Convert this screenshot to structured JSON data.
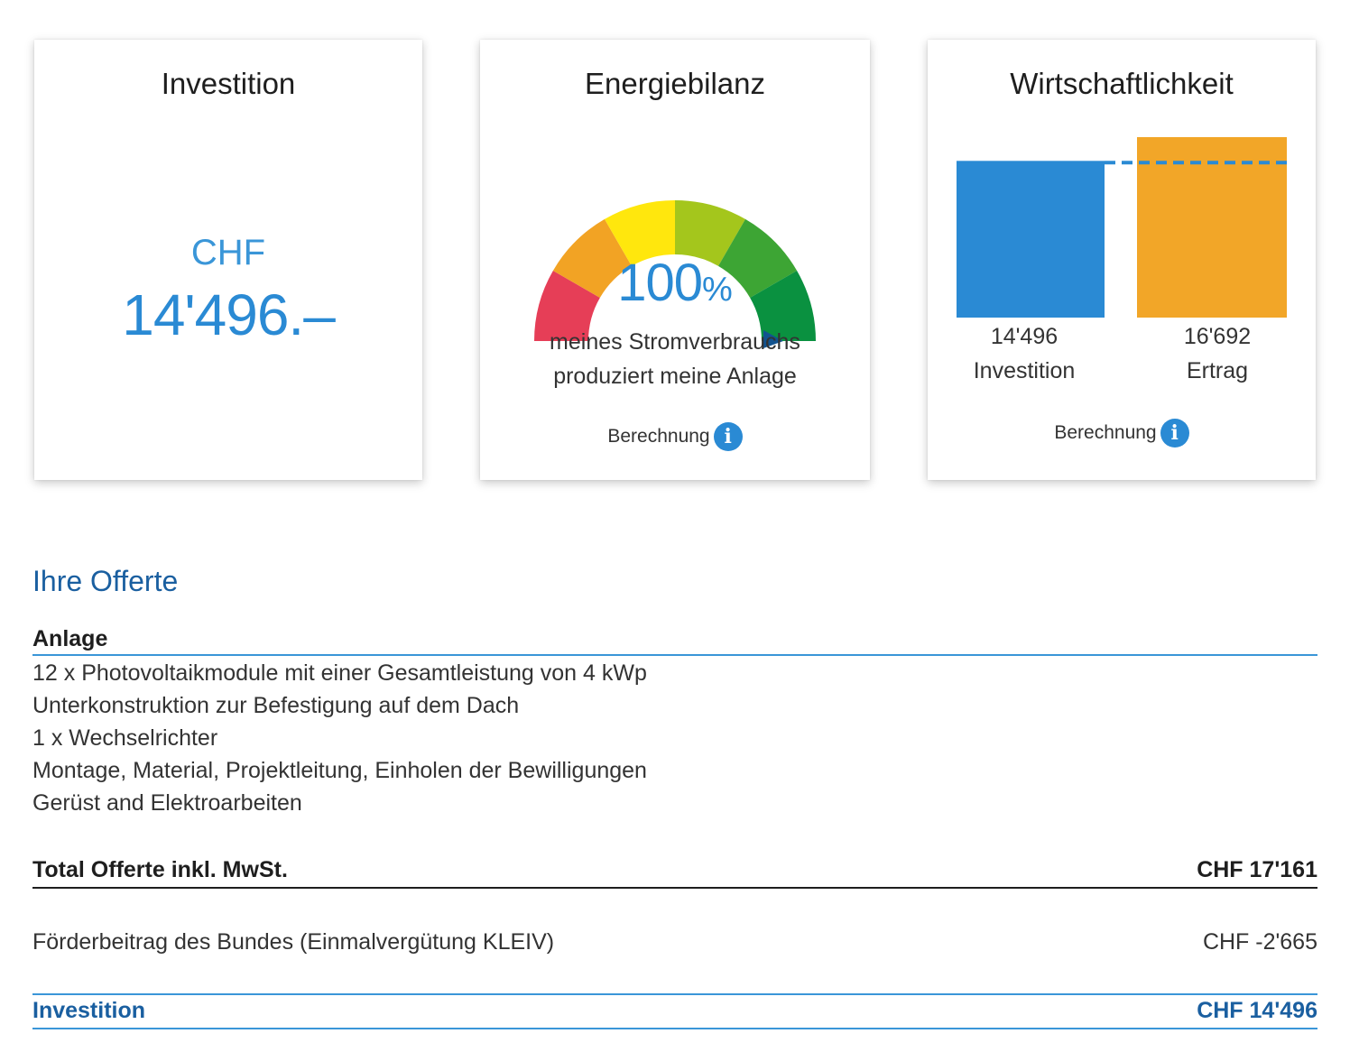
{
  "cards": {
    "investition": {
      "title": "Investition",
      "currency": "CHF",
      "amount": "14'496.–"
    },
    "energiebilanz": {
      "title": "Energiebilanz",
      "value": "100",
      "unit": "%",
      "caption_line1": "meines Stromverbrauchs",
      "caption_line2": "produziert meine Anlage",
      "calc_label": "Berechnung",
      "gauge_level": 1.0,
      "gauge_colors": [
        "#e63e57",
        "#f2a324",
        "#ffe70d",
        "#a4c61c",
        "#3da534",
        "#0a9140"
      ]
    },
    "wirtschaftlichkeit": {
      "title": "Wirtschaftlichkeit",
      "calc_label": "Berechnung",
      "bars": [
        {
          "value_label": "14'496",
          "name": "Investition",
          "value": 14496,
          "color": "#2a8ad4"
        },
        {
          "value_label": "16'692",
          "name": "Ertrag",
          "value": 16692,
          "color": "#f2a628"
        }
      ]
    }
  },
  "offer": {
    "title": "Ihre Offerte",
    "section_heading": "Anlage",
    "items": [
      "12 x Photovoltaikmodule mit einer Gesamtleistung von 4 kWp",
      "Unterkonstruktion zur Befestigung auf dem Dach",
      "1 x Wechselrichter",
      "Montage, Material, Projektleitung, Einholen der Bewilligungen",
      "Gerüst and Elektroarbeiten"
    ],
    "total_label": "Total Offerte inkl. MwSt.",
    "total_value": "CHF 17'161",
    "subsidy_label": "Förderbeitrag des Bundes (Einmalvergütung KLEIV)",
    "subsidy_value": "CHF -2'665",
    "investment_label": "Investition",
    "investment_value": "CHF 14'496"
  },
  "colors": {
    "accent_blue": "#2a8ad4",
    "dark_blue": "#1a5fa0",
    "text": "#333333"
  }
}
